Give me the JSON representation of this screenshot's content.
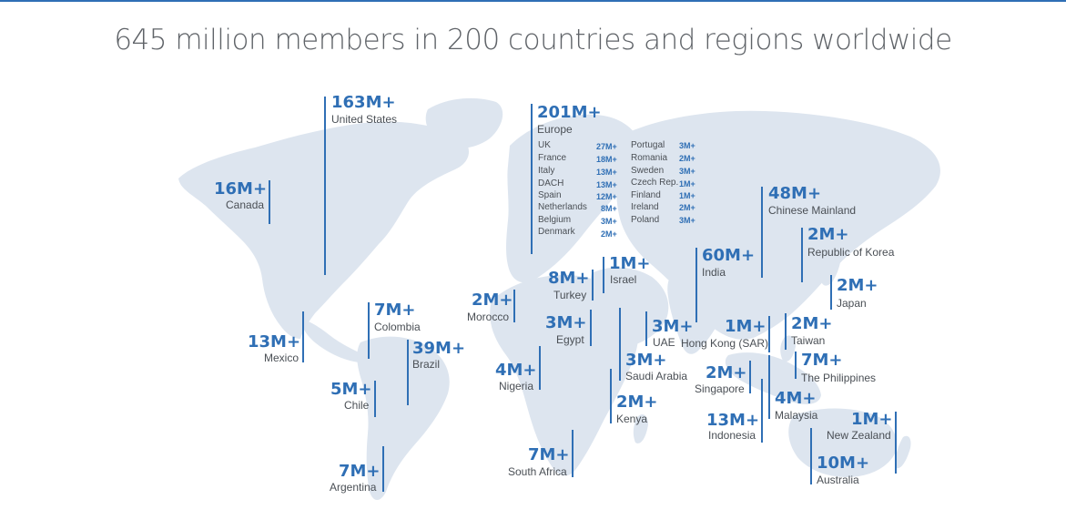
{
  "title": "645 million members in 200 countries and regions worldwide",
  "colors": {
    "accent": "#2f6fb5",
    "land": "#dde5ef",
    "text": "#4a4f55"
  },
  "regions": [
    {
      "id": "united-states",
      "value": "163M+",
      "label": "United States"
    },
    {
      "id": "canada",
      "value": "16M+",
      "label": "Canada"
    },
    {
      "id": "mexico",
      "value": "13M+",
      "label": "Mexico"
    },
    {
      "id": "colombia",
      "value": "7M+",
      "label": "Colombia"
    },
    {
      "id": "brazil",
      "value": "39M+",
      "label": "Brazil"
    },
    {
      "id": "chile",
      "value": "5M+",
      "label": "Chile"
    },
    {
      "id": "argentina",
      "value": "7M+",
      "label": "Argentina"
    },
    {
      "id": "europe",
      "value": "201M+",
      "label": "Europe"
    },
    {
      "id": "morocco",
      "value": "2M+",
      "label": "Morocco"
    },
    {
      "id": "turkey",
      "value": "8M+",
      "label": "Turkey"
    },
    {
      "id": "israel",
      "value": "1M+",
      "label": "Israel"
    },
    {
      "id": "egypt",
      "value": "3M+",
      "label": "Egypt"
    },
    {
      "id": "uae",
      "value": "3M+",
      "label": "UAE"
    },
    {
      "id": "nigeria",
      "value": "4M+",
      "label": "Nigeria"
    },
    {
      "id": "saudi-arabia",
      "value": "3M+",
      "label": "Saudi Arabia"
    },
    {
      "id": "kenya",
      "value": "2M+",
      "label": "Kenya"
    },
    {
      "id": "south-africa",
      "value": "7M+",
      "label": "South Africa"
    },
    {
      "id": "india",
      "value": "60M+",
      "label": "India"
    },
    {
      "id": "chinese-mainland",
      "value": "48M+",
      "label": "Chinese Mainland"
    },
    {
      "id": "korea",
      "value": "2M+",
      "label": "Republic of Korea"
    },
    {
      "id": "japan",
      "value": "2M+",
      "label": "Japan"
    },
    {
      "id": "hong-kong",
      "value": "1M+",
      "label": "Hong Kong (SAR)"
    },
    {
      "id": "taiwan",
      "value": "2M+",
      "label": "Taiwan"
    },
    {
      "id": "philippines",
      "value": "7M+",
      "label": "The Philippines"
    },
    {
      "id": "singapore",
      "value": "2M+",
      "label": "Singapore"
    },
    {
      "id": "malaysia",
      "value": "4M+",
      "label": "Malaysia"
    },
    {
      "id": "indonesia",
      "value": "13M+",
      "label": "Indonesia"
    },
    {
      "id": "new-zealand",
      "value": "1M+",
      "label": "New Zealand"
    },
    {
      "id": "australia",
      "value": "10M+",
      "label": "Australia"
    }
  ],
  "europe_breakdown": [
    {
      "name": "UK",
      "value": "27M+"
    },
    {
      "name": "France",
      "value": "18M+"
    },
    {
      "name": "Italy",
      "value": "13M+"
    },
    {
      "name": "DACH",
      "value": "13M+"
    },
    {
      "name": "Spain",
      "value": "12M+"
    },
    {
      "name": "Netherlands",
      "value": "8M+"
    },
    {
      "name": "Belgium",
      "value": "3M+"
    },
    {
      "name": "Denmark",
      "value": "2M+"
    },
    {
      "name": "Portugal",
      "value": "3M+"
    },
    {
      "name": "Romania",
      "value": "2M+"
    },
    {
      "name": "Sweden",
      "value": "3M+"
    },
    {
      "name": "Czech Rep.",
      "value": "1M+"
    },
    {
      "name": "Finland",
      "value": "1M+"
    },
    {
      "name": "Ireland",
      "value": "2M+"
    },
    {
      "name": "Poland",
      "value": "3M+"
    }
  ]
}
